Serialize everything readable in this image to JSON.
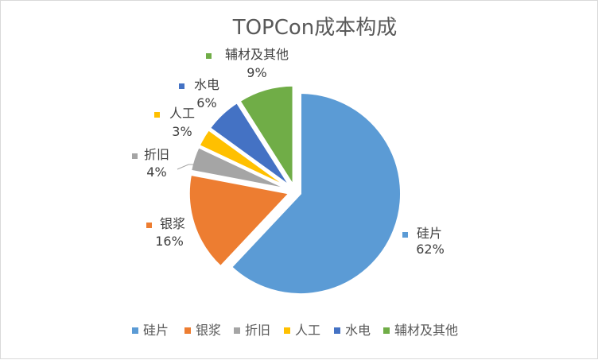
{
  "chart_data": {
    "type": "pie",
    "title": "TOPCon成本构成",
    "categories": [
      "硅片",
      "银浆",
      "折旧",
      "人工",
      "水电",
      "辅材及其他"
    ],
    "values": [
      62,
      16,
      4,
      3,
      6,
      9
    ],
    "value_labels": [
      "62%",
      "16%",
      "4%",
      "3%",
      "6%",
      "9%"
    ],
    "colors": [
      "#5b9bd5",
      "#ed7d31",
      "#a5a5a5",
      "#ffc000",
      "#4472c4",
      "#70ad47"
    ],
    "exploded": true,
    "legend_position": "bottom"
  }
}
